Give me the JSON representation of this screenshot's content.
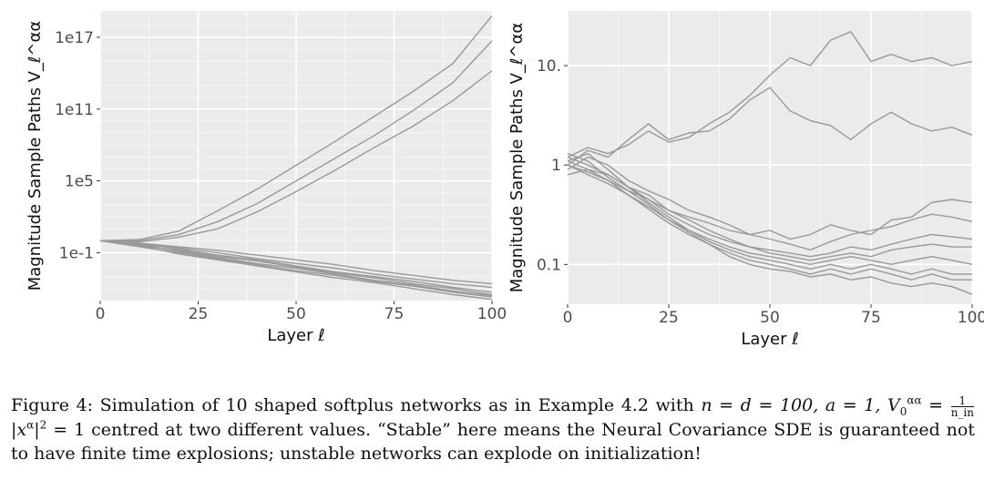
{
  "chart_data": [
    {
      "type": "line",
      "ylabel": "Magnitude Sample Paths V_ℓ^αα",
      "xlabel": "Layer ℓ",
      "xlim": [
        0,
        100
      ],
      "xticks": [
        0,
        25,
        50,
        75,
        100
      ],
      "yscale": "log10",
      "ylim_log10": [
        -5,
        19.2
      ],
      "ytick_labels": [
        "1e-1",
        "1e5",
        "1e11",
        "1e17"
      ],
      "ytick_log10": [
        -1,
        5,
        11,
        17
      ],
      "grid": true,
      "series_log10": [
        {
          "x": [
            0,
            10,
            20,
            30,
            40,
            50,
            60,
            70,
            80,
            90,
            100
          ],
          "y": [
            0,
            0.1,
            0.8,
            2.5,
            4.3,
            6.3,
            8.3,
            10.4,
            12.5,
            14.8,
            18.8
          ]
        },
        {
          "x": [
            0,
            10,
            20,
            30,
            40,
            50,
            60,
            70,
            80,
            90,
            100
          ],
          "y": [
            0,
            0.0,
            0.5,
            1.6,
            3.1,
            5.0,
            6.9,
            8.8,
            10.9,
            13.2,
            16.7
          ]
        },
        {
          "x": [
            0,
            10,
            20,
            30,
            40,
            50,
            60,
            70,
            80,
            90,
            100
          ],
          "y": [
            0,
            -0.1,
            0.3,
            1.0,
            2.4,
            4.1,
            5.9,
            7.8,
            9.6,
            11.7,
            14.2
          ]
        },
        {
          "x": [
            0,
            10,
            20,
            30,
            40,
            50,
            60,
            70,
            80,
            90,
            100
          ],
          "y": [
            0,
            -0.2,
            -0.5,
            -0.8,
            -1.2,
            -1.6,
            -2.0,
            -2.5,
            -2.9,
            -3.3,
            -3.6
          ]
        },
        {
          "x": [
            0,
            10,
            20,
            30,
            40,
            50,
            60,
            70,
            80,
            90,
            100
          ],
          "y": [
            0,
            -0.3,
            -0.6,
            -1.0,
            -1.5,
            -1.9,
            -2.3,
            -2.8,
            -3.2,
            -3.6,
            -3.9
          ]
        },
        {
          "x": [
            0,
            10,
            20,
            30,
            40,
            50,
            60,
            70,
            80,
            90,
            100
          ],
          "y": [
            0,
            -0.2,
            -0.7,
            -1.2,
            -1.6,
            -2.1,
            -2.6,
            -3.0,
            -3.4,
            -3.9,
            -4.3
          ]
        },
        {
          "x": [
            0,
            10,
            20,
            30,
            40,
            50,
            60,
            70,
            80,
            90,
            100
          ],
          "y": [
            0,
            -0.4,
            -0.8,
            -1.3,
            -1.7,
            -2.2,
            -2.7,
            -3.1,
            -3.6,
            -4.0,
            -4.5
          ]
        },
        {
          "x": [
            0,
            10,
            20,
            30,
            40,
            50,
            60,
            70,
            80,
            90,
            100
          ],
          "y": [
            0,
            -0.3,
            -0.9,
            -1.4,
            -1.9,
            -2.3,
            -2.8,
            -3.3,
            -3.7,
            -4.2,
            -4.6
          ]
        },
        {
          "x": [
            0,
            10,
            20,
            30,
            40,
            50,
            60,
            70,
            80,
            90,
            100
          ],
          "y": [
            0,
            -0.5,
            -1.0,
            -1.5,
            -2.0,
            -2.5,
            -2.9,
            -3.4,
            -3.8,
            -4.3,
            -4.7
          ]
        },
        {
          "x": [
            0,
            10,
            20,
            30,
            40,
            50,
            60,
            70,
            80,
            90,
            100
          ],
          "y": [
            0,
            -0.4,
            -1.1,
            -1.6,
            -2.1,
            -2.6,
            -3.1,
            -3.5,
            -4.0,
            -4.5,
            -4.9
          ]
        }
      ]
    },
    {
      "type": "line",
      "ylabel": "Magnitude Sample Paths V_ℓ^αα",
      "xlabel": "Layer ℓ",
      "xlim": [
        0,
        100
      ],
      "xticks": [
        0,
        25,
        50,
        75,
        100
      ],
      "yscale": "log10",
      "ylim_log10": [
        -1.4,
        1.55
      ],
      "ytick_labels": [
        "0.1",
        "1",
        "10."
      ],
      "ytick_log10": [
        -1,
        0,
        1
      ],
      "grid": true,
      "series": [
        {
          "x": [
            0,
            5,
            10,
            15,
            20,
            25,
            30,
            35,
            40,
            45,
            50,
            55,
            60,
            65,
            70,
            75,
            80,
            85,
            90,
            95,
            100
          ],
          "y": [
            1.2,
            1.5,
            1.3,
            1.6,
            2.2,
            1.7,
            1.9,
            2.6,
            3.4,
            5.0,
            8.0,
            12,
            10,
            18,
            22,
            11,
            13,
            11,
            12,
            10,
            11
          ]
        },
        {
          "x": [
            0,
            5,
            10,
            15,
            20,
            25,
            30,
            35,
            40,
            45,
            50,
            55,
            60,
            65,
            70,
            75,
            80,
            85,
            90,
            95,
            100
          ],
          "y": [
            1.0,
            1.4,
            1.2,
            1.8,
            2.6,
            1.8,
            2.1,
            2.2,
            2.9,
            4.5,
            6.0,
            3.5,
            2.8,
            2.5,
            1.8,
            2.6,
            3.4,
            2.6,
            2.2,
            2.4,
            2.0
          ]
        },
        {
          "x": [
            0,
            5,
            10,
            15,
            20,
            25,
            30,
            35,
            40,
            45,
            50,
            55,
            60,
            65,
            70,
            75,
            80,
            85,
            90,
            95,
            100
          ],
          "y": [
            1.1,
            0.9,
            0.8,
            0.6,
            0.5,
            0.35,
            0.3,
            0.26,
            0.22,
            0.2,
            0.22,
            0.18,
            0.2,
            0.25,
            0.22,
            0.2,
            0.28,
            0.3,
            0.42,
            0.45,
            0.42
          ]
        },
        {
          "x": [
            0,
            5,
            10,
            15,
            20,
            25,
            30,
            35,
            40,
            45,
            50,
            55,
            60,
            65,
            70,
            75,
            80,
            85,
            90,
            95,
            100
          ],
          "y": [
            0.9,
            1.2,
            1.0,
            0.7,
            0.55,
            0.45,
            0.35,
            0.3,
            0.25,
            0.2,
            0.18,
            0.16,
            0.14,
            0.17,
            0.2,
            0.22,
            0.24,
            0.28,
            0.32,
            0.3,
            0.27
          ]
        },
        {
          "x": [
            0,
            5,
            10,
            15,
            20,
            25,
            30,
            35,
            40,
            45,
            50,
            55,
            60,
            65,
            70,
            75,
            80,
            85,
            90,
            95,
            100
          ],
          "y": [
            1.0,
            0.85,
            0.7,
            0.55,
            0.45,
            0.35,
            0.28,
            0.22,
            0.18,
            0.15,
            0.14,
            0.13,
            0.12,
            0.13,
            0.15,
            0.14,
            0.16,
            0.18,
            0.2,
            0.19,
            0.18
          ]
        },
        {
          "x": [
            0,
            5,
            10,
            15,
            20,
            25,
            30,
            35,
            40,
            45,
            50,
            55,
            60,
            65,
            70,
            75,
            80,
            85,
            90,
            95,
            100
          ],
          "y": [
            1.2,
            1.0,
            0.8,
            0.6,
            0.45,
            0.32,
            0.25,
            0.2,
            0.17,
            0.15,
            0.13,
            0.12,
            0.11,
            0.12,
            0.13,
            0.12,
            0.14,
            0.15,
            0.16,
            0.15,
            0.15
          ]
        },
        {
          "x": [
            0,
            5,
            10,
            15,
            20,
            25,
            30,
            35,
            40,
            45,
            50,
            55,
            60,
            65,
            70,
            75,
            80,
            85,
            90,
            95,
            100
          ],
          "y": [
            0.8,
            0.9,
            0.7,
            0.5,
            0.38,
            0.28,
            0.22,
            0.18,
            0.15,
            0.13,
            0.12,
            0.11,
            0.1,
            0.11,
            0.12,
            0.11,
            0.1,
            0.11,
            0.12,
            0.11,
            0.1
          ]
        },
        {
          "x": [
            0,
            5,
            10,
            15,
            20,
            25,
            30,
            35,
            40,
            45,
            50,
            55,
            60,
            65,
            70,
            75,
            80,
            85,
            90,
            95,
            100
          ],
          "y": [
            1.1,
            1.3,
            0.9,
            0.6,
            0.42,
            0.3,
            0.22,
            0.17,
            0.14,
            0.12,
            0.11,
            0.1,
            0.09,
            0.1,
            0.09,
            0.1,
            0.09,
            0.08,
            0.09,
            0.08,
            0.08
          ]
        },
        {
          "x": [
            0,
            5,
            10,
            15,
            20,
            25,
            30,
            35,
            40,
            45,
            50,
            55,
            60,
            65,
            70,
            75,
            80,
            85,
            90,
            95,
            100
          ],
          "y": [
            1.0,
            0.8,
            0.65,
            0.5,
            0.36,
            0.26,
            0.2,
            0.16,
            0.13,
            0.11,
            0.1,
            0.09,
            0.08,
            0.09,
            0.08,
            0.09,
            0.08,
            0.07,
            0.08,
            0.07,
            0.07
          ]
        },
        {
          "x": [
            0,
            5,
            10,
            15,
            20,
            25,
            30,
            35,
            40,
            45,
            50,
            55,
            60,
            65,
            70,
            75,
            80,
            85,
            90,
            95,
            100
          ],
          "y": [
            1.3,
            1.1,
            0.75,
            0.55,
            0.4,
            0.28,
            0.21,
            0.16,
            0.12,
            0.1,
            0.09,
            0.085,
            0.075,
            0.08,
            0.07,
            0.075,
            0.065,
            0.06,
            0.065,
            0.06,
            0.05
          ]
        }
      ]
    }
  ],
  "caption": {
    "part1": "Figure 4: Simulation of 10 shaped softplus networks as in Example 4.2 with ",
    "math1": "n = d = 100, a = 1, V",
    "part2": " = 1 centred at two different values. “Stable” here means the Neural Covariance SDE is guaranteed not to have finite time explosions; unstable networks can explode on initialization!",
    "sub0": "0",
    "sup_aa": "αα",
    "frac_num": "1",
    "frac_den": "n_in",
    "abs_expr": "|x",
    "abs_sup": "α",
    "abs_close": "|",
    "sq": "2"
  },
  "colors": {
    "panel_bg": "#ebebeb",
    "grid_major": "#ffffff",
    "line": "#999999",
    "tick": "#4d4d4d"
  }
}
